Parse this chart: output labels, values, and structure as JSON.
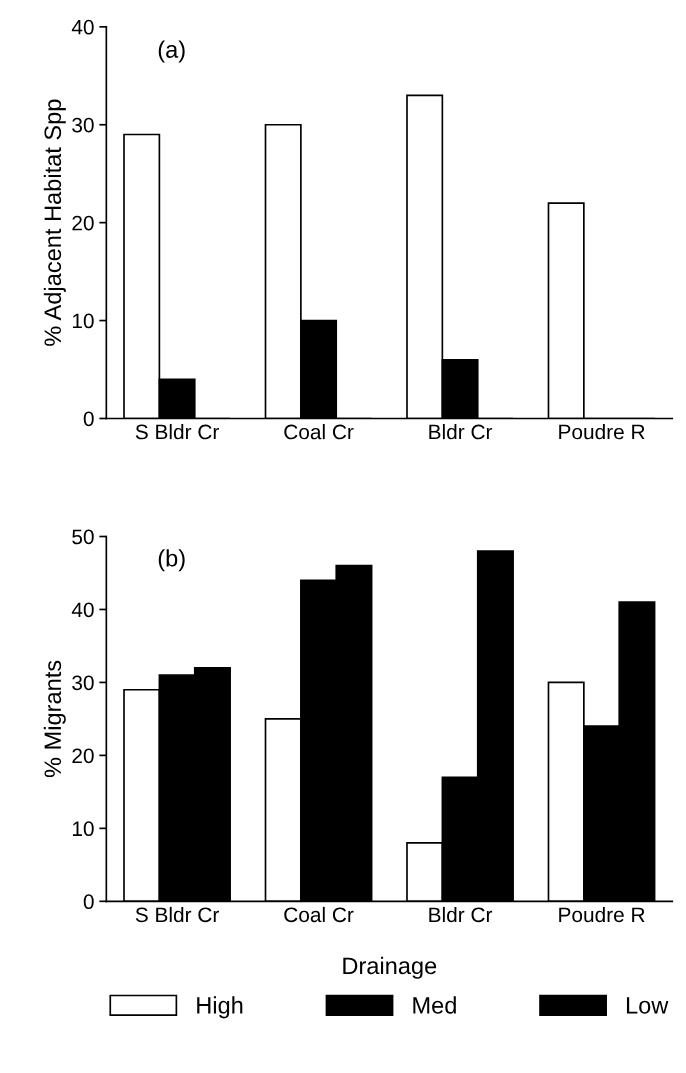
{
  "chart_data": [
    {
      "type": "bar",
      "annotations": [
        "(a)"
      ],
      "ylabel": "% Adjacent Habitat Spp",
      "categories": [
        "S Bldr Cr",
        "Coal Cr",
        "Bldr Cr",
        "Poudre R"
      ],
      "ylim": [
        0,
        40
      ],
      "yticks": [
        0,
        10,
        20,
        30,
        40
      ],
      "grid": false,
      "series": [
        {
          "color": "#ffffff",
          "values": [
            29,
            30,
            33,
            22
          ]
        },
        {
          "color": "#000000",
          "values": [
            4,
            10,
            6,
            0
          ]
        },
        {
          "color": "#000000",
          "values": [
            0,
            0,
            0,
            0
          ]
        }
      ]
    },
    {
      "type": "bar",
      "annotations": [
        "(b)"
      ],
      "ylabel": "% Migrants",
      "xlabel": "Drainage",
      "categories": [
        "S Bldr Cr",
        "Coal Cr",
        "Bldr Cr",
        "Poudre R"
      ],
      "ylim": [
        0,
        50
      ],
      "yticks": [
        0,
        10,
        20,
        30,
        40,
        50
      ],
      "grid": false,
      "legend": "bottom",
      "series": [
        {
          "name": "High",
          "color": "#ffffff",
          "values": [
            29,
            25,
            8,
            30
          ]
        },
        {
          "name": "Med",
          "color": "#000000",
          "values": [
            31,
            44,
            17,
            24
          ]
        },
        {
          "name": "Low",
          "color": "#000000",
          "values": [
            32,
            46,
            48,
            41
          ]
        }
      ]
    }
  ]
}
